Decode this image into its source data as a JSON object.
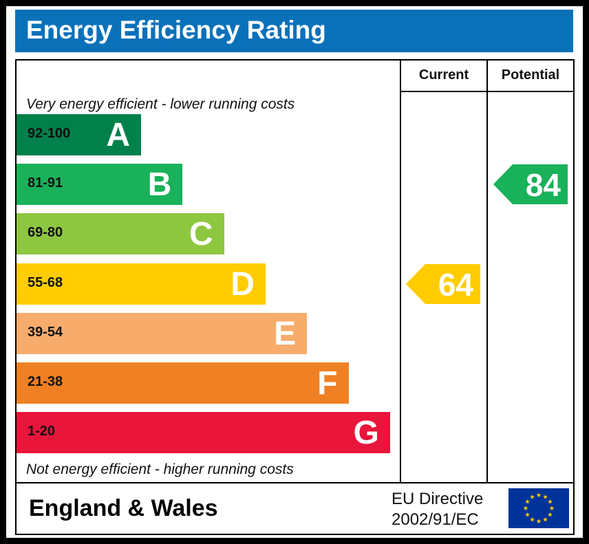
{
  "title": "Energy Efficiency Rating",
  "columns": {
    "current": "Current",
    "potential": "Potential"
  },
  "top_caption": "Very energy efficient - lower running costs",
  "bottom_caption": "Not energy efficient - higher running costs",
  "footer": {
    "country": "England & Wales",
    "directive_line1": "EU Directive",
    "directive_line2": "2002/91/EC",
    "flag_icon": "eu-flag-icon"
  },
  "chart_data": {
    "type": "bar",
    "bands": [
      {
        "letter": "A",
        "range": "92-100",
        "color": "#00804a"
      },
      {
        "letter": "B",
        "range": "81-91",
        "color": "#19b159"
      },
      {
        "letter": "C",
        "range": "69-80",
        "color": "#8dc63f"
      },
      {
        "letter": "D",
        "range": "55-68",
        "color": "#ffcc00"
      },
      {
        "letter": "E",
        "range": "39-54",
        "color": "#f7ac6b"
      },
      {
        "letter": "F",
        "range": "21-38",
        "color": "#ef8023"
      },
      {
        "letter": "G",
        "range": "1-20",
        "color": "#e9153b"
      }
    ],
    "current": {
      "value": "64",
      "band": "D",
      "color": "#ffcc00"
    },
    "potential": {
      "value": "84",
      "band": "B",
      "color": "#19b159"
    }
  }
}
